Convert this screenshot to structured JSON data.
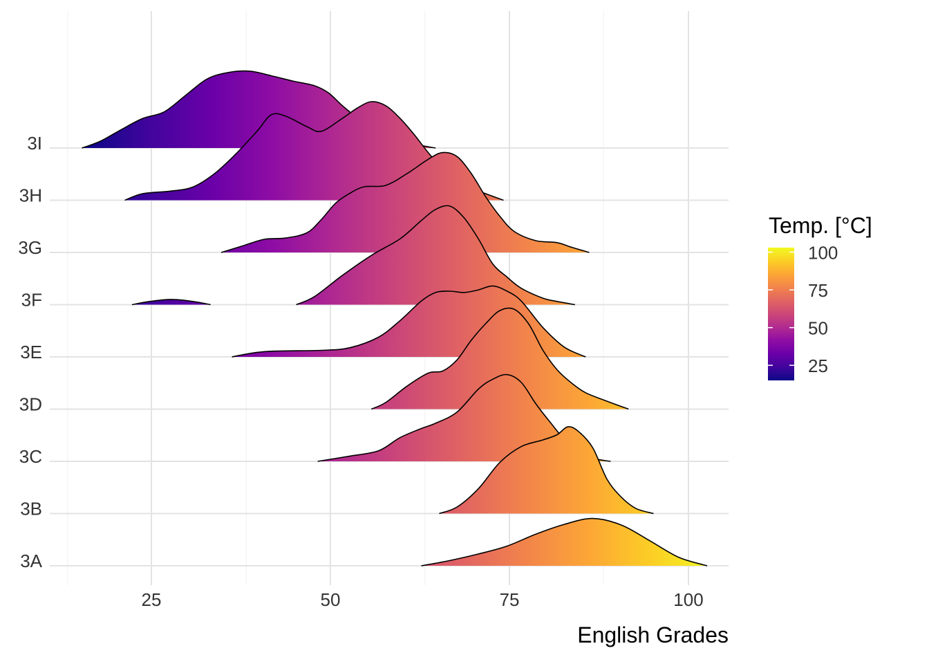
{
  "chart_data": {
    "type": "ridgeline",
    "xlabel": "English Grades",
    "ylabel": "",
    "x_ticks": [
      25,
      50,
      75,
      100
    ],
    "xlim": [
      10,
      105
    ],
    "categories": [
      "3A",
      "3B",
      "3C",
      "3D",
      "3E",
      "3F",
      "3G",
      "3H",
      "3I"
    ],
    "fill_scale": "plasma (fill by x value)",
    "legend": {
      "title": "Temp. [°C]",
      "labels": [
        "100",
        "75",
        "50",
        "25"
      ],
      "tick_values": [
        100,
        75,
        50,
        25
      ],
      "range": [
        15,
        103
      ],
      "placement": "right"
    },
    "series": [
      {
        "name": "3A",
        "points": [
          [
            62,
            0
          ],
          [
            66,
            0.08
          ],
          [
            70,
            0.18
          ],
          [
            74,
            0.3
          ],
          [
            78,
            0.48
          ],
          [
            82,
            0.63
          ],
          [
            86,
            0.72
          ],
          [
            90,
            0.62
          ],
          [
            94,
            0.38
          ],
          [
            98,
            0.13
          ],
          [
            102,
            0
          ]
        ]
      },
      {
        "name": "3B",
        "points": [
          [
            64.5,
            0
          ],
          [
            67,
            0.1
          ],
          [
            70,
            0.38
          ],
          [
            73,
            0.78
          ],
          [
            76,
            1.02
          ],
          [
            79,
            1.12
          ],
          [
            81,
            1.2
          ],
          [
            82.5,
            1.32
          ],
          [
            84,
            1.25
          ],
          [
            86,
            1.0
          ],
          [
            88,
            0.52
          ],
          [
            90,
            0.25
          ],
          [
            92,
            0.08
          ],
          [
            94.5,
            0
          ]
        ]
      },
      {
        "name": "3C",
        "points": [
          [
            47.5,
            0
          ],
          [
            52,
            0.08
          ],
          [
            56,
            0.16
          ],
          [
            59,
            0.36
          ],
          [
            62,
            0.5
          ],
          [
            64,
            0.58
          ],
          [
            67,
            0.75
          ],
          [
            70,
            1.1
          ],
          [
            72,
            1.25
          ],
          [
            74,
            1.32
          ],
          [
            76,
            1.2
          ],
          [
            78,
            0.88
          ],
          [
            80,
            0.6
          ],
          [
            83,
            0.22
          ],
          [
            86,
            0.05
          ],
          [
            88.5,
            0
          ]
        ]
      },
      {
        "name": "3D",
        "points": [
          [
            55,
            0
          ],
          [
            57,
            0.1
          ],
          [
            60,
            0.35
          ],
          [
            63,
            0.55
          ],
          [
            65,
            0.58
          ],
          [
            67,
            0.75
          ],
          [
            69,
            1.05
          ],
          [
            71,
            1.3
          ],
          [
            73,
            1.5
          ],
          [
            75,
            1.52
          ],
          [
            77,
            1.3
          ],
          [
            79,
            0.9
          ],
          [
            81,
            0.6
          ],
          [
            83,
            0.4
          ],
          [
            85,
            0.25
          ],
          [
            88,
            0.12
          ],
          [
            91,
            0
          ]
        ]
      },
      {
        "name": "3E",
        "points": [
          [
            35.5,
            0
          ],
          [
            40,
            0.08
          ],
          [
            48,
            0.1
          ],
          [
            52,
            0.14
          ],
          [
            56,
            0.3
          ],
          [
            59,
            0.55
          ],
          [
            62,
            0.85
          ],
          [
            64,
            0.98
          ],
          [
            66,
            1.0
          ],
          [
            68,
            0.98
          ],
          [
            70,
            1.02
          ],
          [
            72,
            1.08
          ],
          [
            74,
            1.0
          ],
          [
            76,
            0.85
          ],
          [
            79,
            0.45
          ],
          [
            82,
            0.15
          ],
          [
            85,
            0
          ]
        ]
      },
      {
        "name": "3F",
        "points": [
          [
            21.5,
            0
          ],
          [
            24,
            0.05
          ],
          [
            27,
            0.08
          ],
          [
            30,
            0.05
          ],
          [
            32.5,
            0
          ],
          [
            44.5,
            0
          ],
          [
            47,
            0.12
          ],
          [
            51,
            0.45
          ],
          [
            55,
            0.75
          ],
          [
            59,
            1.0
          ],
          [
            62,
            1.28
          ],
          [
            64,
            1.45
          ],
          [
            66,
            1.5
          ],
          [
            68,
            1.32
          ],
          [
            70,
            1.0
          ],
          [
            72,
            0.62
          ],
          [
            74,
            0.42
          ],
          [
            76,
            0.25
          ],
          [
            79,
            0.1
          ],
          [
            81,
            0.05
          ],
          [
            83.5,
            0
          ]
        ]
      },
      {
        "name": "3G",
        "points": [
          [
            34,
            0
          ],
          [
            37,
            0.1
          ],
          [
            40,
            0.2
          ],
          [
            43,
            0.22
          ],
          [
            46,
            0.3
          ],
          [
            48,
            0.5
          ],
          [
            50,
            0.75
          ],
          [
            52,
            0.9
          ],
          [
            54,
            1.0
          ],
          [
            57,
            1.02
          ],
          [
            60,
            1.2
          ],
          [
            63,
            1.42
          ],
          [
            65,
            1.52
          ],
          [
            67,
            1.46
          ],
          [
            69,
            1.2
          ],
          [
            71,
            0.85
          ],
          [
            73,
            0.55
          ],
          [
            75,
            0.32
          ],
          [
            78,
            0.18
          ],
          [
            81,
            0.15
          ],
          [
            83,
            0.08
          ],
          [
            85.5,
            0
          ]
        ]
      },
      {
        "name": "3H",
        "points": [
          [
            20.5,
            0
          ],
          [
            23,
            0.1
          ],
          [
            27,
            0.14
          ],
          [
            30,
            0.2
          ],
          [
            33,
            0.4
          ],
          [
            36,
            0.7
          ],
          [
            39,
            1.05
          ],
          [
            41,
            1.3
          ],
          [
            43,
            1.28
          ],
          [
            46,
            1.12
          ],
          [
            48,
            1.05
          ],
          [
            51,
            1.25
          ],
          [
            53,
            1.4
          ],
          [
            55,
            1.5
          ],
          [
            57,
            1.44
          ],
          [
            59,
            1.25
          ],
          [
            61,
            1.0
          ],
          [
            63,
            0.72
          ],
          [
            65,
            0.48
          ],
          [
            67,
            0.3
          ],
          [
            69,
            0.18
          ],
          [
            71,
            0.1
          ],
          [
            73.5,
            0
          ]
        ]
      },
      {
        "name": "3I",
        "points": [
          [
            14.5,
            0
          ],
          [
            17,
            0.1
          ],
          [
            20,
            0.28
          ],
          [
            23,
            0.45
          ],
          [
            26,
            0.55
          ],
          [
            29,
            0.8
          ],
          [
            32,
            1.05
          ],
          [
            35,
            1.15
          ],
          [
            38,
            1.17
          ],
          [
            41,
            1.1
          ],
          [
            44,
            1.02
          ],
          [
            47,
            0.95
          ],
          [
            49,
            0.84
          ],
          [
            51,
            0.64
          ],
          [
            53,
            0.47
          ],
          [
            56,
            0.3
          ],
          [
            59,
            0.14
          ],
          [
            62,
            0.04
          ],
          [
            64,
            0
          ]
        ]
      }
    ]
  }
}
